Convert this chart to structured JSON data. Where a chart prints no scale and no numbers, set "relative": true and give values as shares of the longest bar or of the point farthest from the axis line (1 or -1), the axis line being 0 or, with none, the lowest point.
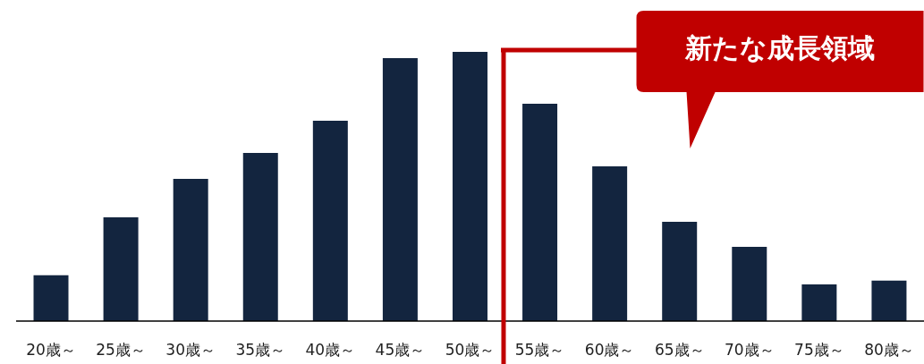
{
  "chart_data": {
    "type": "bar",
    "relative": true,
    "categories": [
      "20歳～",
      "25歳～",
      "30歳～",
      "35歳～",
      "40歳～",
      "45歳～",
      "50歳～",
      "55歳～",
      "60歳～",
      "65歳～",
      "70歳～",
      "75歳～",
      "80歳～"
    ],
    "values": [
      0.17,
      0.385,
      0.528,
      0.625,
      0.744,
      0.977,
      1,
      0.807,
      0.575,
      0.369,
      0.276,
      0.136,
      0.15
    ],
    "color": "#13253f",
    "ref_lines": [
      {
        "axis": "x",
        "value": "55歳～",
        "color": "#c00000"
      }
    ],
    "annotations": [
      "新たな成長領域"
    ]
  }
}
